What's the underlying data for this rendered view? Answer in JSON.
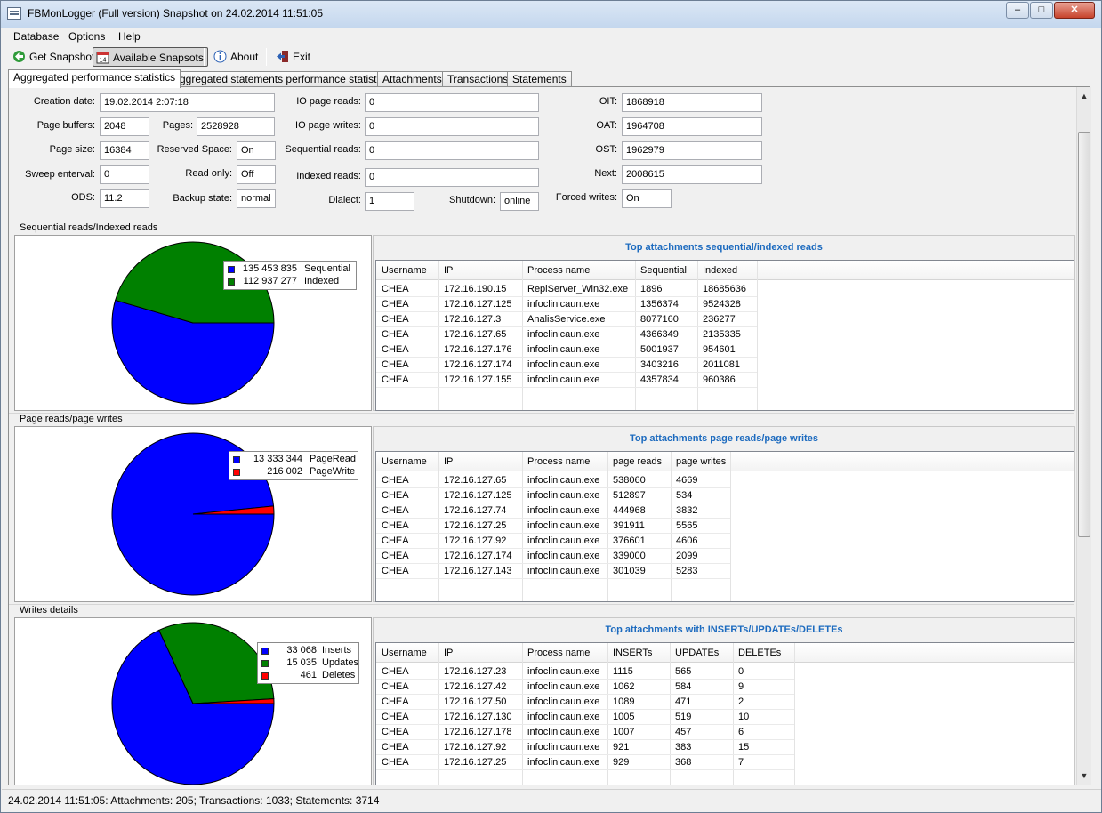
{
  "window": {
    "title": "FBMonLogger  (Full version) Snapshot  on 24.02.2014 11:51:05"
  },
  "menu": [
    "Database",
    "Options",
    "Help"
  ],
  "toolbar": {
    "get_snapshot": "Get Snapshot",
    "available_snapshots": "Available Snapsots",
    "about": "About",
    "exit": "Exit"
  },
  "tabs": [
    "Aggregated performance statistics",
    "Aggregated statements performance statistics",
    "Attachments",
    "Transactions",
    "Statements"
  ],
  "db": {
    "creation_date": {
      "label": "Creation date:",
      "value": "19.02.2014 2:07:18"
    },
    "page_buffers": {
      "label": "Page buffers:",
      "value": "2048"
    },
    "pages": {
      "label": "Pages:",
      "value": "2528928"
    },
    "page_size": {
      "label": "Page size:",
      "value": "16384"
    },
    "reserved_space": {
      "label": "Reserved Space:",
      "value": "On"
    },
    "sweep_interval": {
      "label": "Sweep enterval:",
      "value": "0"
    },
    "read_only": {
      "label": "Read only:",
      "value": "Off"
    },
    "ods": {
      "label": "ODS:",
      "value": "11.2"
    },
    "backup_state": {
      "label": "Backup state:",
      "value": "normal"
    },
    "io_page_reads": {
      "label": "IO page reads:",
      "value": "0"
    },
    "io_page_writes": {
      "label": "IO page writes:",
      "value": "0"
    },
    "sequential_reads": {
      "label": "Sequential reads:",
      "value": "0"
    },
    "indexed_reads": {
      "label": "Indexed reads:",
      "value": "0"
    },
    "dialect": {
      "label": "Dialect:",
      "value": "1"
    },
    "shutdown": {
      "label": "Shutdown:",
      "value": "online"
    },
    "oit": {
      "label": "OIT:",
      "value": "1868918"
    },
    "oat": {
      "label": "OAT:",
      "value": "1964708"
    },
    "ost": {
      "label": "OST:",
      "value": "1962979"
    },
    "next": {
      "label": "Next:",
      "value": "2008615"
    },
    "forced_writes": {
      "label": "Forced writes:",
      "value": "On"
    }
  },
  "sections": [
    {
      "title": "Sequential reads/Indexed reads",
      "legend": [
        {
          "value": "135 453 835",
          "name": "Sequential",
          "color": "#0000ff"
        },
        {
          "value": "112 937 277",
          "name": "Indexed",
          "color": "#008000"
        }
      ],
      "grid_title": "Top attachments  sequential/indexed reads",
      "columns": [
        "Username",
        "IP",
        "Process name",
        "Sequential",
        "Indexed"
      ],
      "rows": [
        [
          "CHEA",
          "172.16.190.15",
          "ReplServer_Win32.exe",
          "1896",
          "18685636"
        ],
        [
          "CHEA",
          "172.16.127.125",
          "infoclinicaun.exe",
          "1356374",
          "9524328"
        ],
        [
          "CHEA",
          "172.16.127.3",
          "AnalisService.exe",
          "8077160",
          "236277"
        ],
        [
          "CHEA",
          "172.16.127.65",
          "infoclinicaun.exe",
          "4366349",
          "2135335"
        ],
        [
          "CHEA",
          "172.16.127.176",
          "infoclinicaun.exe",
          "5001937",
          "954601"
        ],
        [
          "CHEA",
          "172.16.127.174",
          "infoclinicaun.exe",
          "3403216",
          "2011081"
        ],
        [
          "CHEA",
          "172.16.127.155",
          "infoclinicaun.exe",
          "4357834",
          "960386"
        ]
      ]
    },
    {
      "title": "Page reads/page writes",
      "legend": [
        {
          "value": "13 333 344",
          "name": "PageRead",
          "color": "#0000ff"
        },
        {
          "value": "216 002",
          "name": "PageWrite",
          "color": "#ff0000"
        }
      ],
      "grid_title": "Top attachments page reads/page writes",
      "columns": [
        "Username",
        "IP",
        "Process name",
        "page reads",
        "page writes"
      ],
      "rows": [
        [
          "CHEA",
          "172.16.127.65",
          "infoclinicaun.exe",
          "538060",
          "4669"
        ],
        [
          "CHEA",
          "172.16.127.125",
          "infoclinicaun.exe",
          "512897",
          "534"
        ],
        [
          "CHEA",
          "172.16.127.74",
          "infoclinicaun.exe",
          "444968",
          "3832"
        ],
        [
          "CHEA",
          "172.16.127.25",
          "infoclinicaun.exe",
          "391911",
          "5565"
        ],
        [
          "CHEA",
          "172.16.127.92",
          "infoclinicaun.exe",
          "376601",
          "4606"
        ],
        [
          "CHEA",
          "172.16.127.174",
          "infoclinicaun.exe",
          "339000",
          "2099"
        ],
        [
          "CHEA",
          "172.16.127.143",
          "infoclinicaun.exe",
          "301039",
          "5283"
        ]
      ]
    },
    {
      "title": "Writes details",
      "legend": [
        {
          "value": "33 068",
          "name": "Inserts",
          "color": "#0000ff"
        },
        {
          "value": "15 035",
          "name": "Updates",
          "color": "#008000"
        },
        {
          "value": "461",
          "name": "Deletes",
          "color": "#ff0000"
        }
      ],
      "grid_title": "Top attachments  with INSERTs/UPDATEs/DELETEs",
      "columns": [
        "Username",
        "IP",
        "Process name",
        "INSERTs",
        "UPDATEs",
        "DELETEs"
      ],
      "rows": [
        [
          "CHEA",
          "172.16.127.23",
          "infoclinicaun.exe",
          "1115",
          "565",
          "0"
        ],
        [
          "CHEA",
          "172.16.127.42",
          "infoclinicaun.exe",
          "1062",
          "584",
          "9"
        ],
        [
          "CHEA",
          "172.16.127.50",
          "infoclinicaun.exe",
          "1089",
          "471",
          "2"
        ],
        [
          "CHEA",
          "172.16.127.130",
          "infoclinicaun.exe",
          "1005",
          "519",
          "10"
        ],
        [
          "CHEA",
          "172.16.127.178",
          "infoclinicaun.exe",
          "1007",
          "457",
          "6"
        ],
        [
          "CHEA",
          "172.16.127.92",
          "infoclinicaun.exe",
          "921",
          "383",
          "15"
        ],
        [
          "CHEA",
          "172.16.127.25",
          "infoclinicaun.exe",
          "929",
          "368",
          "7"
        ]
      ]
    }
  ],
  "chart_data": [
    {
      "type": "pie",
      "categories": [
        "Sequential",
        "Indexed"
      ],
      "values": [
        135453835,
        112937277
      ]
    },
    {
      "type": "pie",
      "categories": [
        "PageRead",
        "PageWrite"
      ],
      "values": [
        13333344,
        216002
      ]
    },
    {
      "type": "pie",
      "categories": [
        "Inserts",
        "Updates",
        "Deletes"
      ],
      "values": [
        33068,
        15035,
        461
      ]
    }
  ],
  "status": "24.02.2014 11:51:05: Attachments: 205; Transactions: 1033; Statements: 3714"
}
